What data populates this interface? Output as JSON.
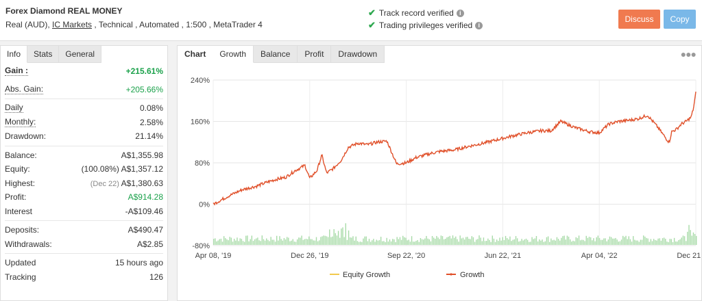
{
  "header": {
    "title": "Forex Diamond REAL MONEY",
    "sub_prefix": "Real (AUD), ",
    "broker": "IC Markets",
    "sub_suffix": " , Technical , Automated , 1:500 , MetaTrader 4",
    "verified_track": "Track record verified",
    "verified_trading": "Trading privileges verified",
    "discuss_label": "Discuss",
    "copy_label": "Copy"
  },
  "left_tabs": [
    "Info",
    "Stats",
    "General"
  ],
  "stats": {
    "gain": {
      "label": "Gain :",
      "value": "+215.61%"
    },
    "abs_gain": {
      "label": "Abs. Gain:",
      "value": "+205.66%"
    },
    "daily": {
      "label": "Daily",
      "value": "0.08%"
    },
    "monthly": {
      "label": "Monthly:",
      "value": "2.58%"
    },
    "drawdown": {
      "label": "Drawdown:",
      "value": "21.14%"
    },
    "balance": {
      "label": "Balance:",
      "value": "A$1,355.98"
    },
    "equity": {
      "label": "Equity:",
      "note": "(100.08%)",
      "value": "A$1,357.12"
    },
    "highest": {
      "label": "Highest:",
      "note": "(Dec 22)",
      "value": "A$1,380.63"
    },
    "profit": {
      "label": "Profit:",
      "value": "A$914.28"
    },
    "interest": {
      "label": "Interest",
      "value": "-A$109.46"
    },
    "deposits": {
      "label": "Deposits:",
      "value": "A$490.47"
    },
    "withdrawals": {
      "label": "Withdrawals:",
      "value": "A$2.85"
    },
    "updated": {
      "label": "Updated",
      "value": "15 hours ago"
    },
    "tracking": {
      "label": "Tracking",
      "value": "126"
    }
  },
  "chart_tabs": {
    "label": "Chart",
    "items": [
      "Growth",
      "Balance",
      "Profit",
      "Drawdown"
    ]
  },
  "colors": {
    "growth_line": "#e0502a",
    "equity_line": "#f2c94c",
    "volume_bars": "#a8dba8",
    "gain_green": "#1aa14a"
  },
  "chart_data": {
    "type": "line",
    "yticks": [
      "240%",
      "160%",
      "80%",
      "0%",
      "-80%"
    ],
    "ylim": [
      -80,
      240
    ],
    "xticks": [
      "Apr 08, '19",
      "Dec 26, '19",
      "Sep 22, '20",
      "Jun 22, '21",
      "Apr 04, '22",
      "Dec 21, '22"
    ],
    "legend": [
      "Equity Growth",
      "Growth"
    ],
    "legend_position": "bottom",
    "grid": true,
    "series": [
      {
        "name": "Growth",
        "x": [
          0,
          0.03,
          0.06,
          0.09,
          0.11,
          0.13,
          0.15,
          0.17,
          0.19,
          0.2,
          0.215,
          0.225,
          0.235,
          0.25,
          0.265,
          0.28,
          0.3,
          0.32,
          0.34,
          0.36,
          0.38,
          0.4,
          0.42,
          0.45,
          0.47,
          0.5,
          0.53,
          0.56,
          0.59,
          0.62,
          0.65,
          0.68,
          0.7,
          0.72,
          0.75,
          0.78,
          0.8,
          0.82,
          0.84,
          0.86,
          0.88,
          0.9,
          0.92,
          0.94,
          0.945,
          0.95,
          0.96,
          0.97,
          0.98,
          0.99,
          0.995,
          1.0
        ],
        "y": [
          0,
          15,
          28,
          35,
          42,
          48,
          52,
          65,
          75,
          50,
          65,
          95,
          60,
          70,
          85,
          110,
          118,
          115,
          120,
          122,
          78,
          80,
          90,
          98,
          102,
          105,
          112,
          118,
          125,
          132,
          138,
          142,
          142,
          160,
          148,
          140,
          138,
          155,
          160,
          162,
          165,
          172,
          150,
          125,
          120,
          140,
          145,
          155,
          160,
          168,
          185,
          215
        ]
      },
      {
        "name": "Equity Growth",
        "x": [
          0,
          0.03,
          0.06,
          0.09,
          0.11,
          0.13,
          0.15,
          0.17,
          0.19,
          0.2,
          0.215,
          0.225,
          0.235,
          0.25,
          0.265,
          0.28,
          0.3,
          0.32,
          0.34,
          0.36,
          0.38,
          0.4,
          0.42,
          0.45,
          0.47,
          0.5,
          0.53,
          0.56,
          0.59,
          0.62,
          0.65,
          0.68,
          0.7,
          0.72,
          0.75,
          0.78,
          0.8,
          0.82,
          0.84,
          0.86,
          0.88,
          0.9,
          0.92,
          0.94,
          0.945,
          0.95,
          0.96,
          0.97,
          0.98,
          0.99,
          0.995,
          1.0
        ],
        "y": [
          0,
          15,
          28,
          35,
          42,
          48,
          52,
          65,
          75,
          50,
          65,
          95,
          60,
          70,
          85,
          110,
          118,
          115,
          120,
          122,
          78,
          80,
          90,
          98,
          102,
          105,
          112,
          118,
          125,
          132,
          138,
          142,
          142,
          160,
          148,
          140,
          138,
          155,
          160,
          162,
          165,
          172,
          150,
          125,
          120,
          140,
          145,
          155,
          160,
          168,
          185,
          215
        ]
      }
    ]
  }
}
